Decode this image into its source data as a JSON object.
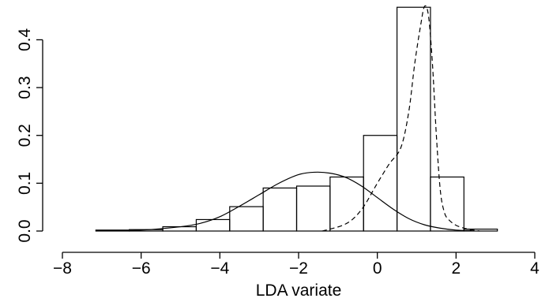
{
  "chart_data": {
    "type": "histogram",
    "title": "",
    "xlabel": "LDA variate",
    "ylabel": "",
    "xlim": [
      -8,
      4
    ],
    "ylim": [
      0,
      0.47
    ],
    "x_ticks": [
      -8,
      -6,
      -4,
      -2,
      0,
      2,
      4
    ],
    "x_tick_labels": [
      "−8",
      "−6",
      "−4",
      "−2",
      "0",
      "2",
      "4"
    ],
    "y_ticks": [
      0.0,
      0.1,
      0.2,
      0.3,
      0.4
    ],
    "y_tick_labels": [
      "0.0",
      "0.1",
      "0.2",
      "0.3",
      "0.4"
    ],
    "grid": false,
    "bins": [
      {
        "x0": -7.15,
        "x1": -6.3,
        "density": 0.002
      },
      {
        "x0": -6.3,
        "x1": -5.45,
        "density": 0.003
      },
      {
        "x0": -5.45,
        "x1": -4.6,
        "density": 0.009
      },
      {
        "x0": -4.6,
        "x1": -3.75,
        "density": 0.024
      },
      {
        "x0": -3.75,
        "x1": -2.9,
        "density": 0.051
      },
      {
        "x0": -2.9,
        "x1": -2.05,
        "density": 0.09
      },
      {
        "x0": -2.05,
        "x1": -1.2,
        "density": 0.094
      },
      {
        "x0": -1.2,
        "x1": -0.35,
        "density": 0.113
      },
      {
        "x0": -0.35,
        "x1": 0.5,
        "density": 0.2
      },
      {
        "x0": 0.5,
        "x1": 1.35,
        "density": 0.468
      },
      {
        "x0": 1.35,
        "x1": 2.2,
        "density": 0.113
      },
      {
        "x0": 2.2,
        "x1": 3.05,
        "density": 0.004
      }
    ],
    "series": [
      {
        "style": "solid",
        "x": [
          -7.0,
          -6.0,
          -5.0,
          -4.5,
          -4.0,
          -3.5,
          -3.0,
          -2.5,
          -2.0,
          -1.6,
          -1.2,
          -0.8,
          -0.4,
          0.0,
          0.4,
          0.8,
          1.2,
          1.6,
          2.0,
          2.4
        ],
        "y": [
          0.001,
          0.002,
          0.009,
          0.016,
          0.03,
          0.052,
          0.076,
          0.1,
          0.118,
          0.123,
          0.121,
          0.112,
          0.094,
          0.07,
          0.046,
          0.026,
          0.013,
          0.006,
          0.002,
          0.001
        ]
      },
      {
        "style": "dashed",
        "x": [
          -1.4,
          -0.8,
          -0.4,
          0.0,
          0.3,
          0.6,
          0.8,
          0.95,
          1.1,
          1.2,
          1.3,
          1.4,
          1.5,
          1.6,
          1.7,
          1.8,
          2.0,
          2.3,
          2.6
        ],
        "y": [
          0.0,
          0.015,
          0.045,
          0.1,
          0.14,
          0.175,
          0.25,
          0.35,
          0.43,
          0.47,
          0.45,
          0.35,
          0.2,
          0.085,
          0.04,
          0.025,
          0.012,
          0.004,
          0.0
        ]
      }
    ]
  }
}
